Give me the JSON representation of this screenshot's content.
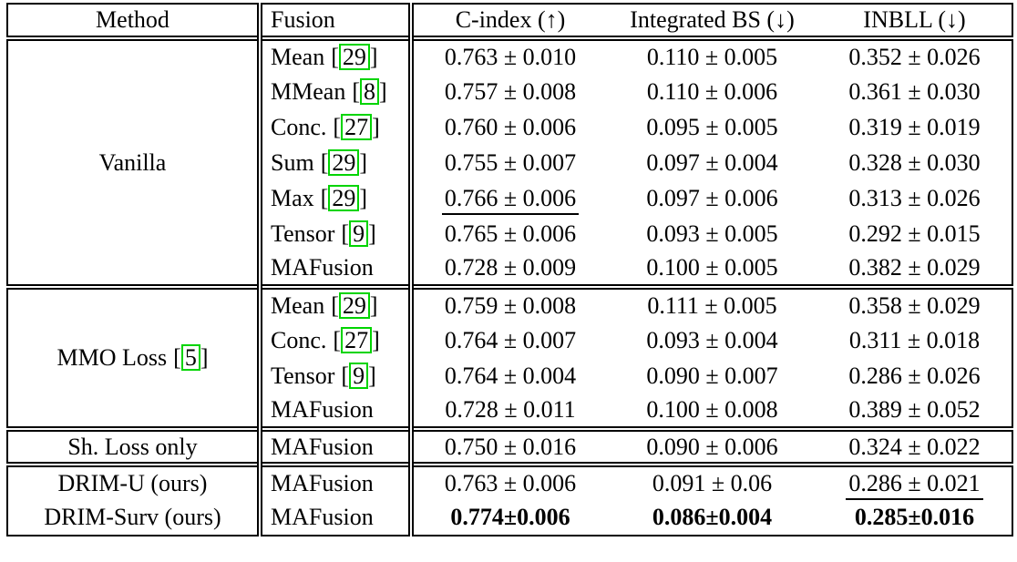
{
  "header": {
    "method": "Method",
    "fusion": "Fusion",
    "cindex": "C-index (↑)",
    "integrated_bs": "Integrated BS (↓)",
    "inbll": "INBLL (↓)"
  },
  "cite_format": {
    "open": "[",
    "close": "]"
  },
  "colors": {
    "citation_border": "#00d400",
    "line": "#000000",
    "background": "#ffffff"
  },
  "groups": [
    {
      "method": "Vanilla",
      "rows": [
        {
          "fusion": "Mean",
          "cite": "29",
          "cindex": "0.763 ± 0.010",
          "ibs": "0.110 ± 0.005",
          "inbll": "0.352 ± 0.026"
        },
        {
          "fusion": "MMean",
          "cite": "8",
          "cindex": "0.757 ± 0.008",
          "ibs": "0.110 ± 0.006",
          "inbll": "0.361 ± 0.030"
        },
        {
          "fusion": "Conc.",
          "cite": "27",
          "cindex": "0.760 ± 0.006",
          "ibs": "0.095 ± 0.005",
          "inbll": "0.319 ± 0.019"
        },
        {
          "fusion": "Sum",
          "cite": "29",
          "cindex": "0.755 ± 0.007",
          "ibs": "0.097 ± 0.004",
          "inbll": "0.328 ± 0.030"
        },
        {
          "fusion": "Max",
          "cite": "29",
          "cindex": "0.766 ± 0.006",
          "ibs": "0.097 ± 0.006",
          "inbll": "0.313 ± 0.026"
        },
        {
          "fusion": "Tensor",
          "cite": "9",
          "cindex": "0.765 ± 0.006",
          "ibs": "0.093 ± 0.005",
          "inbll": "0.292 ± 0.015"
        },
        {
          "fusion": "MAFusion",
          "cindex": "0.728 ± 0.009",
          "ibs": "0.100 ± 0.005",
          "inbll": "0.382 ± 0.029"
        }
      ]
    },
    {
      "method": "MMO Loss",
      "method_cite": "5",
      "rows": [
        {
          "fusion": "Mean",
          "cite": "29",
          "cindex": "0.759 ± 0.008",
          "ibs": "0.111 ± 0.005",
          "inbll": "0.358 ± 0.029"
        },
        {
          "fusion": "Conc.",
          "cite": "27",
          "cindex": "0.764 ± 0.007",
          "ibs": "0.093 ± 0.004",
          "inbll": "0.311 ± 0.018"
        },
        {
          "fusion": "Tensor",
          "cite": "9",
          "cindex": "0.764 ± 0.004",
          "ibs": "0.090 ± 0.007",
          "inbll": "0.286 ± 0.026"
        },
        {
          "fusion": "MAFusion",
          "cindex": "0.728 ± 0.011",
          "ibs": "0.100 ± 0.008",
          "inbll": "0.389 ± 0.052"
        }
      ]
    },
    {
      "method": "Sh. Loss only",
      "rows": [
        {
          "fusion": "MAFusion",
          "cindex": "0.750 ± 0.016",
          "ibs": "0.090 ± 0.006",
          "inbll": "0.324 ± 0.022"
        }
      ]
    },
    {
      "rows": [
        {
          "method": "DRIM-U (ours)",
          "fusion": "MAFusion",
          "cindex": "0.763 ± 0.006",
          "ibs": "0.091 ± 0.06",
          "inbll": "0.286 ± 0.021"
        },
        {
          "method": "DRIM-Surv (ours)",
          "fusion": "MAFusion",
          "cindex": "0.774±0.006",
          "ibs": "0.086±0.004",
          "inbll": "0.285±0.016"
        }
      ]
    }
  ],
  "emphasis": {
    "underlined_values": [
      "0.766 ± 0.006",
      "0.090 ± 0.006",
      "0.286 ± 0.021"
    ],
    "bold_row_method": "DRIM-Surv (ours)"
  }
}
